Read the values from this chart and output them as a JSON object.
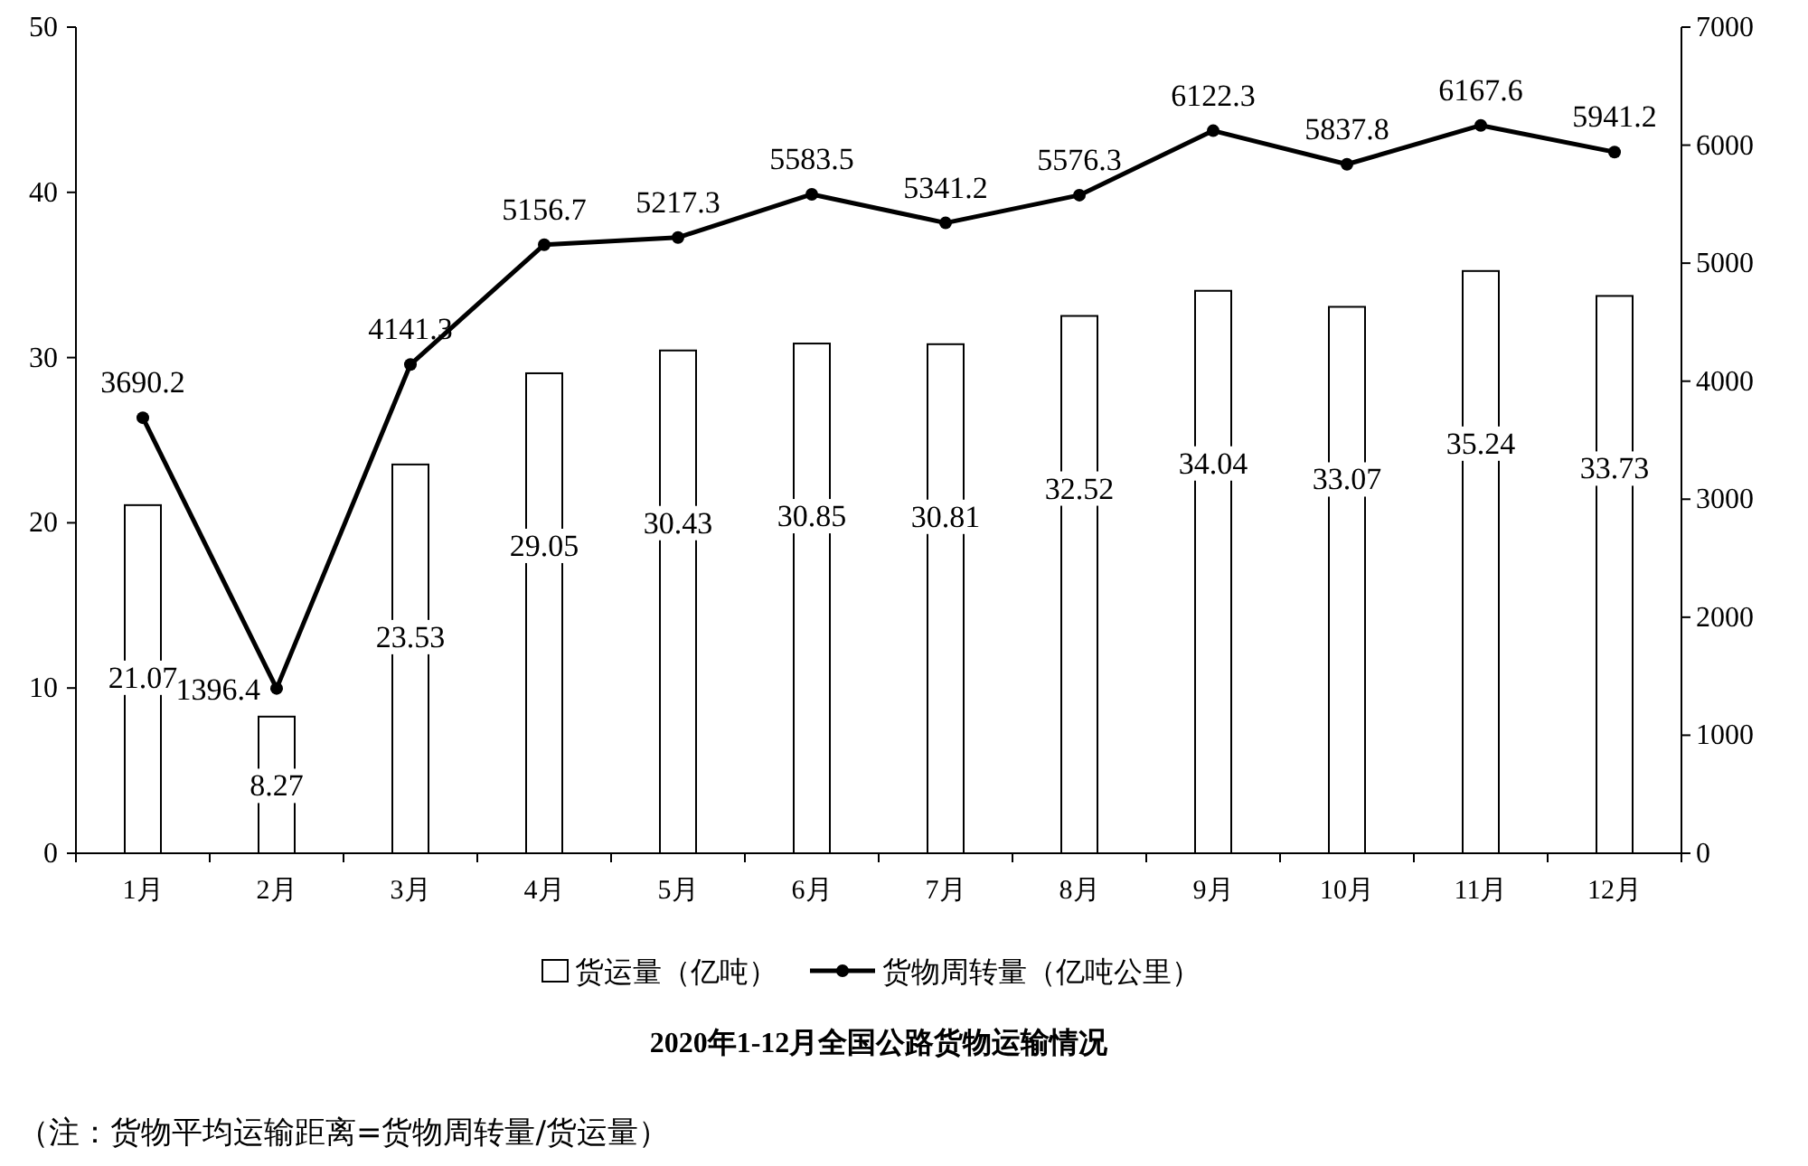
{
  "chart_data": {
    "type": "bar",
    "title": "2020年1-12月全国公路货物运输情况",
    "categories": [
      "1月",
      "2月",
      "3月",
      "4月",
      "5月",
      "6月",
      "7月",
      "8月",
      "9月",
      "10月",
      "11月",
      "12月"
    ],
    "series": [
      {
        "name": "货运量（亿吨）",
        "color": "#ffffff",
        "values": [
          21.07,
          8.27,
          23.53,
          29.05,
          30.43,
          30.85,
          30.81,
          32.52,
          34.04,
          33.07,
          35.24,
          33.73
        ]
      },
      {
        "name": "货物周转量（亿吨公里）",
        "type": "line",
        "axis": "y2",
        "color": "#000000",
        "marker": "circle",
        "values": [
          3690.2,
          1396.4,
          4141.3,
          5156.7,
          5217.3,
          5583.5,
          5341.2,
          5576.3,
          6122.3,
          5837.8,
          6167.6,
          5941.2
        ]
      }
    ],
    "ylim": [
      0,
      50
    ],
    "yticks": [
      0,
      10,
      20,
      30,
      40,
      50
    ],
    "y2lim": [
      0,
      7000
    ],
    "y2ticks": [
      0,
      1000,
      2000,
      3000,
      4000,
      5000,
      6000,
      7000
    ],
    "data_labels": true,
    "legend": "bottom",
    "annotations": [
      "（注：货物平均运输距离=货物周转量/货运量）"
    ]
  }
}
